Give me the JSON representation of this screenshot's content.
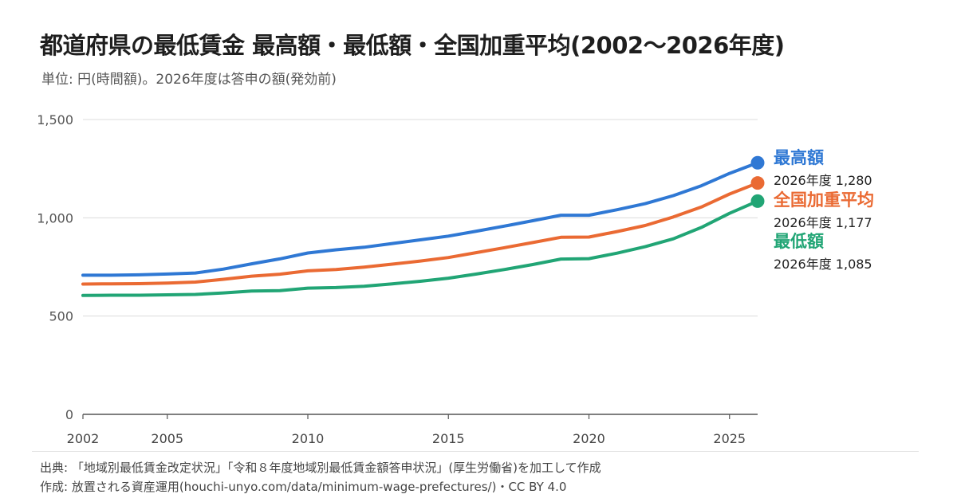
{
  "title": "都道府県の最低賃金 最高額・最低額・全国加重平均(2002〜2026年度)",
  "subtitle": "単位: 円(時間額)。2026年度は答申の額(発効前)",
  "footer": {
    "source": "出典: 「地域別最低賃金改定状況」「令和８年度地域別最低賃金額答申状況」(厚生労働省)を加工して作成",
    "credit": "作成: 放置される資産運用(houchi-unyo.com/data/minimum-wage-prefectures/)・CC BY 4.0"
  },
  "chart_data": {
    "type": "line",
    "x": [
      2002,
      2003,
      2004,
      2005,
      2006,
      2007,
      2008,
      2009,
      2010,
      2011,
      2012,
      2013,
      2014,
      2015,
      2016,
      2017,
      2018,
      2019,
      2020,
      2021,
      2022,
      2023,
      2024,
      2025,
      2026
    ],
    "ylim": [
      0,
      1500
    ],
    "xlim": [
      2002,
      2026
    ],
    "yticks": [
      "0",
      "500",
      "1,000",
      "1,500"
    ],
    "ytick_values": [
      0,
      500,
      1000,
      1500
    ],
    "xticks": [
      "2002",
      "2005",
      "2010",
      "2015",
      "2020",
      "2025"
    ],
    "xtick_values": [
      2002,
      2005,
      2010,
      2015,
      2020,
      2025
    ],
    "grid": true,
    "series": [
      {
        "name": "最高額",
        "color": "#2f78d4",
        "values": [
          708,
          708,
          710,
          714,
          719,
          739,
          766,
          791,
          821,
          837,
          850,
          869,
          888,
          907,
          932,
          958,
          985,
          1013,
          1013,
          1041,
          1072,
          1113,
          1163,
          1226,
          1280
        ],
        "end_label": "2026年度 1,280"
      },
      {
        "name": "全国加重平均",
        "color": "#ea6a33",
        "values": [
          663,
          664,
          665,
          668,
          673,
          687,
          703,
          713,
          730,
          737,
          749,
          764,
          780,
          798,
          823,
          848,
          874,
          901,
          902,
          930,
          961,
          1004,
          1055,
          1121,
          1177
        ],
        "end_label": "2026年度 1,177"
      },
      {
        "name": "最低額",
        "color": "#21a575",
        "values": [
          605,
          606,
          606,
          608,
          610,
          618,
          627,
          629,
          642,
          645,
          652,
          664,
          677,
          693,
          714,
          737,
          762,
          790,
          792,
          820,
          853,
          893,
          951,
          1023,
          1085
        ],
        "end_label": "2026年度 1,085"
      }
    ]
  }
}
